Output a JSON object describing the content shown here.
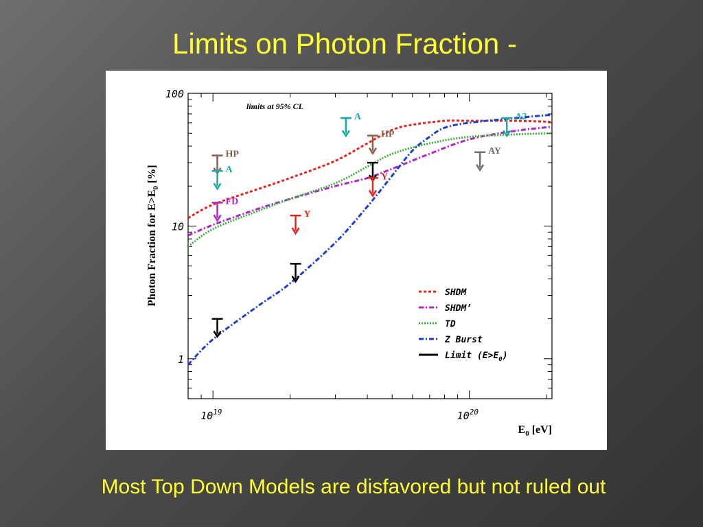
{
  "slide": {
    "title": "Limits on Photon Fraction -",
    "caption": "Most Top Down Models are disfavored but not ruled out"
  },
  "chart_data": {
    "type": "line",
    "title": "",
    "annotation": "limits at 95% CL",
    "xlabel": "E₀ [eV]",
    "ylabel": "Photon Fraction for E>E₀ [%]",
    "x_scale": "log",
    "y_scale": "log",
    "xlim": [
      8e+18,
      2.1e+20
    ],
    "ylim": [
      0.5,
      100
    ],
    "x_ticklabels": [
      {
        "value": 1e+19,
        "base": "10",
        "exp": "19"
      },
      {
        "value": 1e+20,
        "base": "10",
        "exp": "20"
      }
    ],
    "y_ticklabels": [
      {
        "value": 1,
        "label": "1"
      },
      {
        "value": 10,
        "label": "10"
      },
      {
        "value": 100,
        "label": "100"
      }
    ],
    "grid": false,
    "legend_position": "lower-right",
    "series": [
      {
        "name": "SHDM",
        "color": "#e8231e",
        "dash": "4,3",
        "x": [
          8e+18,
          1e+19,
          1.5e+19,
          2e+19,
          3e+19,
          4e+19,
          5e+19,
          6e+19,
          8e+19,
          1e+20,
          1.5e+20,
          2.1e+20
        ],
        "y": [
          11.5,
          14.5,
          19,
          23,
          31,
          42,
          53,
          58,
          62,
          62,
          62,
          61
        ]
      },
      {
        "name": "SHDM'",
        "color": "#b026c8",
        "dash": "7,3,2,3",
        "x": [
          8e+18,
          1e+19,
          1.5e+19,
          2e+19,
          3e+19,
          4e+19,
          5e+19,
          7e+19,
          1e+20,
          1.5e+20,
          2.1e+20
        ],
        "y": [
          8.5,
          10.2,
          13.5,
          16,
          20,
          23,
          27,
          35,
          45,
          52,
          56
        ]
      },
      {
        "name": "TD",
        "color": "#3cb43c",
        "dash": "2,2",
        "x": [
          8e+18,
          1e+19,
          1.5e+19,
          2e+19,
          3e+19,
          4e+19,
          5e+19,
          7e+19,
          1e+20,
          1.5e+20,
          2.1e+20
        ],
        "y": [
          7.0,
          9.5,
          13.0,
          16,
          21,
          28,
          35,
          42,
          47,
          49,
          50
        ]
      },
      {
        "name": "Z Burst",
        "color": "#1c3ed2",
        "dash": "7,3,2,3",
        "x": [
          8e+18,
          1e+19,
          1.5e+19,
          2e+19,
          3e+19,
          4e+19,
          5e+19,
          6e+19,
          7e+19,
          8e+19,
          1e+20,
          1.5e+20,
          2.1e+20
        ],
        "y": [
          0.9,
          1.4,
          2.5,
          3.7,
          7.5,
          14,
          24,
          37,
          47,
          55,
          60,
          65,
          69
        ]
      }
    ],
    "legend": [
      {
        "label": "SHDM",
        "color": "#e8231e",
        "dash": "4,3"
      },
      {
        "label": "SHDM’",
        "color": "#b026c8",
        "dash": "7,3,2,3"
      },
      {
        "label": "TD",
        "color": "#3cb43c",
        "dash": "2,2"
      },
      {
        "label": "Z Burst",
        "color": "#1c3ed2",
        "dash": "7,3,2,3"
      },
      {
        "label": "Limit (E>E₀)",
        "color": "#000000",
        "dash": ""
      }
    ],
    "limits": [
      {
        "label": "HP",
        "x": 1.04e+19,
        "y": 34,
        "color": "#8b5e4b",
        "label_color": "#8b5e4b"
      },
      {
        "label": "A",
        "x": 1.04e+19,
        "y": 26,
        "color": "#1aa9a4",
        "label_color": "#1aa9a4"
      },
      {
        "label": "FD",
        "x": 1.04e+19,
        "y": 15,
        "color": "#b026c8",
        "label_color": "#b026c8"
      },
      {
        "label": "",
        "x": 1.04e+19,
        "y": 2.0,
        "color": "#000000",
        "label_color": "#000000"
      },
      {
        "label": "Y",
        "x": 2.1e+19,
        "y": 12,
        "color": "#e8231e",
        "label_color": "#e8231e"
      },
      {
        "label": "",
        "x": 2.1e+19,
        "y": 5.2,
        "color": "#000000",
        "label_color": "#000000"
      },
      {
        "label": "A",
        "x": 3.3e+19,
        "y": 65,
        "color": "#1aa9a4",
        "label_color": "#1aa9a4"
      },
      {
        "label": "HP",
        "x": 4.2e+19,
        "y": 48,
        "color": "#8b5e4b",
        "label_color": "#8b5e4b"
      },
      {
        "label": "",
        "x": 4.2e+19,
        "y": 30,
        "color": "#000000",
        "label_color": "#000000"
      },
      {
        "label": "Y",
        "x": 4.2e+19,
        "y": 23,
        "color": "#e8231e",
        "label_color": "#e8231e"
      },
      {
        "label": "AY",
        "x": 1.1e+20,
        "y": 36,
        "color": "#6e6e6e",
        "label_color": "#6e6e6e"
      },
      {
        "label": "A2",
        "x": 1.4e+20,
        "y": 65,
        "color": "#1aa9a4",
        "label_color": "#1aa9a4"
      }
    ]
  }
}
